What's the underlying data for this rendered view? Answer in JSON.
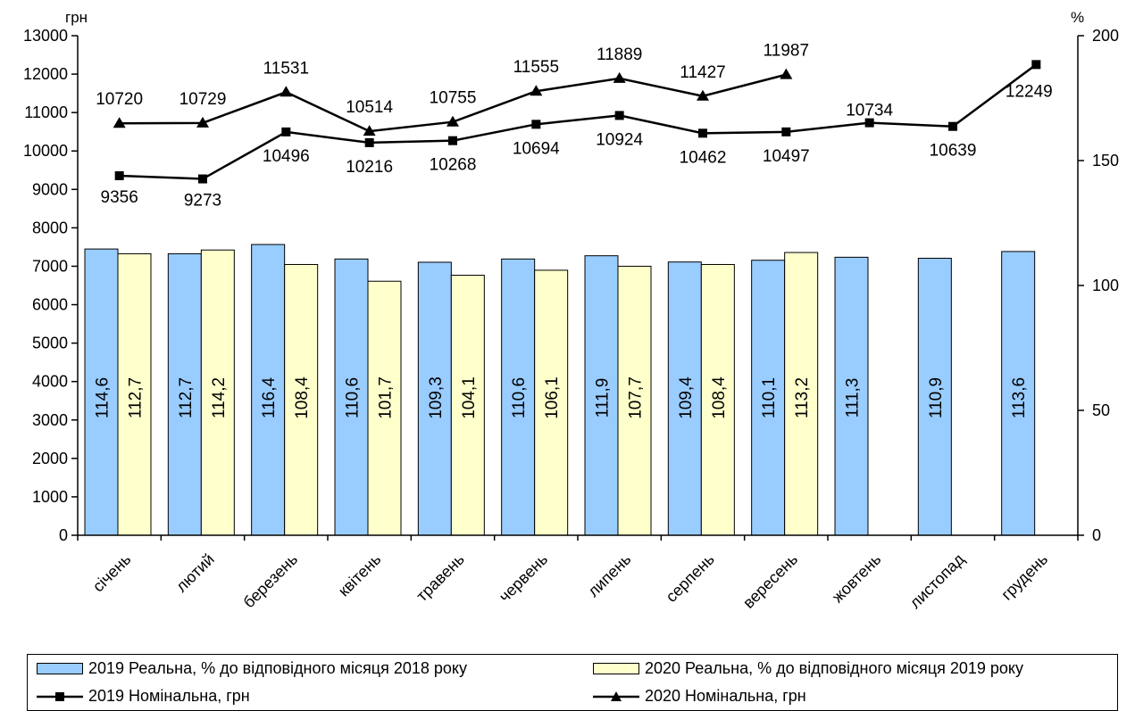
{
  "chart_data": {
    "type": "bar",
    "categories": [
      "січень",
      "лютий",
      "березень",
      "квітень",
      "травень",
      "червень",
      "липень",
      "серпень",
      "вересень",
      "жовтень",
      "листопад",
      "грудень"
    ],
    "y_left": {
      "label": "грн",
      "min": 0,
      "max": 13000,
      "step": 1000
    },
    "y_right": {
      "label": "%",
      "min": 0,
      "max": 200,
      "step": 50
    },
    "bar_series": [
      {
        "name": "2019 Реальна, % до відповідного місяця 2018 року",
        "axis": "right",
        "color": "#99CCFF",
        "values": [
          114.6,
          112.7,
          116.4,
          110.6,
          109.3,
          110.6,
          111.9,
          109.4,
          110.1,
          111.3,
          110.9,
          113.6
        ],
        "labels": [
          "114,6",
          "112,7",
          "116,4",
          "110,6",
          "109,3",
          "110,6",
          "111,9",
          "109,4",
          "110,1",
          "111,3",
          "110,9",
          "113,6"
        ]
      },
      {
        "name": "2020 Реальна, % до відповідного місяця 2019 року",
        "axis": "right",
        "color": "#FFFFCC",
        "values": [
          112.7,
          114.2,
          108.4,
          101.7,
          104.1,
          106.1,
          107.7,
          108.4,
          113.2,
          null,
          null,
          null
        ],
        "labels": [
          "112,7",
          "114,2",
          "108,4",
          "101,7",
          "104,1",
          "106,1",
          "107,7",
          "108,4",
          "113,2",
          "",
          "",
          ""
        ]
      }
    ],
    "line_series": [
      {
        "name": "2019 Номінальна, грн",
        "axis": "left",
        "marker": "square",
        "values": [
          9356,
          9273,
          10496,
          10216,
          10268,
          10694,
          10924,
          10462,
          10497,
          10734,
          10639,
          12249
        ],
        "labels": [
          "9356",
          "9273",
          "10496",
          "10216",
          "10268",
          "10694",
          "10924",
          "10462",
          "10497",
          "10734",
          "10639",
          "12249"
        ]
      },
      {
        "name": "2020 Номінальна, грн",
        "axis": "left",
        "marker": "triangle",
        "values": [
          10720,
          10729,
          11531,
          10514,
          10755,
          11555,
          11889,
          11427,
          11987,
          null,
          null,
          null
        ],
        "labels": [
          "10720",
          "10729",
          "11531",
          "10514",
          "10755",
          "11555",
          "11889",
          "11427",
          "11987",
          "",
          "",
          ""
        ]
      }
    ],
    "grid": false,
    "legend_position": "bottom"
  }
}
